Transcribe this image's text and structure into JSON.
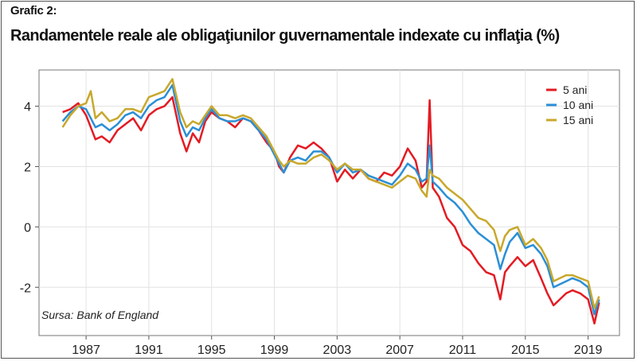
{
  "header": {
    "label": "Grafic 2:",
    "title": "Randamentele reale ale obligaţiunilor guvernamentale indexate cu inflaţia (%)"
  },
  "source": "Sursa: Bank of England",
  "colors": {
    "5 ani": "#e31b23",
    "10 ani": "#2b8fd6",
    "15 ani": "#c8a82c"
  },
  "chart_data": {
    "type": "line",
    "xlim": [
      1984,
      2021
    ],
    "ylim": [
      -3.6,
      5.2
    ],
    "x_ticks": [
      1987,
      1991,
      1995,
      1999,
      2003,
      2007,
      2011,
      2015,
      2019
    ],
    "y_ticks": [
      4,
      2,
      0,
      -2
    ],
    "y_tick_labels": [
      "4",
      "2",
      "0",
      "-2"
    ],
    "grid": true,
    "legend_position": "top-right",
    "series": [
      {
        "name": "5 ani",
        "color": "#e31b23",
        "points": [
          [
            1985.5,
            3.8
          ],
          [
            1986.0,
            3.9
          ],
          [
            1986.5,
            4.1
          ],
          [
            1987.0,
            3.7
          ],
          [
            1987.3,
            3.3
          ],
          [
            1987.6,
            2.9
          ],
          [
            1988.0,
            3.0
          ],
          [
            1988.5,
            2.8
          ],
          [
            1989.0,
            3.2
          ],
          [
            1989.5,
            3.4
          ],
          [
            1990.0,
            3.6
          ],
          [
            1990.5,
            3.2
          ],
          [
            1991.0,
            3.7
          ],
          [
            1991.5,
            3.9
          ],
          [
            1992.0,
            4.0
          ],
          [
            1992.5,
            4.3
          ],
          [
            1993.0,
            3.1
          ],
          [
            1993.4,
            2.5
          ],
          [
            1993.8,
            3.1
          ],
          [
            1994.2,
            2.8
          ],
          [
            1994.6,
            3.5
          ],
          [
            1995.0,
            3.8
          ],
          [
            1995.5,
            3.6
          ],
          [
            1996.0,
            3.5
          ],
          [
            1996.5,
            3.3
          ],
          [
            1997.0,
            3.6
          ],
          [
            1997.5,
            3.5
          ],
          [
            1998.0,
            3.2
          ],
          [
            1998.5,
            2.8
          ],
          [
            1999.0,
            2.5
          ],
          [
            1999.3,
            2.0
          ],
          [
            1999.6,
            1.8
          ],
          [
            2000.0,
            2.3
          ],
          [
            2000.5,
            2.7
          ],
          [
            2001.0,
            2.6
          ],
          [
            2001.5,
            2.8
          ],
          [
            2002.0,
            2.6
          ],
          [
            2002.5,
            2.3
          ],
          [
            2003.0,
            1.5
          ],
          [
            2003.5,
            1.9
          ],
          [
            2004.0,
            1.6
          ],
          [
            2004.5,
            1.9
          ],
          [
            2005.0,
            1.6
          ],
          [
            2005.5,
            1.5
          ],
          [
            2006.0,
            1.8
          ],
          [
            2006.5,
            1.7
          ],
          [
            2007.0,
            2.0
          ],
          [
            2007.5,
            2.6
          ],
          [
            2008.0,
            2.2
          ],
          [
            2008.4,
            1.3
          ],
          [
            2008.7,
            1.5
          ],
          [
            2008.9,
            4.2
          ],
          [
            2009.1,
            1.3
          ],
          [
            2009.5,
            1.0
          ],
          [
            2010.0,
            0.3
          ],
          [
            2010.5,
            0.0
          ],
          [
            2011.0,
            -0.6
          ],
          [
            2011.5,
            -0.8
          ],
          [
            2012.0,
            -1.2
          ],
          [
            2012.5,
            -1.5
          ],
          [
            2013.0,
            -1.6
          ],
          [
            2013.4,
            -2.4
          ],
          [
            2013.7,
            -1.5
          ],
          [
            2014.0,
            -1.3
          ],
          [
            2014.5,
            -1.0
          ],
          [
            2015.0,
            -1.3
          ],
          [
            2015.5,
            -1.1
          ],
          [
            2016.0,
            -1.7
          ],
          [
            2016.4,
            -2.2
          ],
          [
            2016.8,
            -2.6
          ],
          [
            2017.2,
            -2.4
          ],
          [
            2017.6,
            -2.2
          ],
          [
            2018.0,
            -2.1
          ],
          [
            2018.5,
            -2.2
          ],
          [
            2019.0,
            -2.4
          ],
          [
            2019.4,
            -3.2
          ],
          [
            2019.7,
            -2.5
          ]
        ]
      },
      {
        "name": "10 ani",
        "color": "#2b8fd6",
        "points": [
          [
            1985.5,
            3.5
          ],
          [
            1986.0,
            3.8
          ],
          [
            1986.5,
            4.0
          ],
          [
            1987.0,
            3.9
          ],
          [
            1987.3,
            3.6
          ],
          [
            1987.6,
            3.3
          ],
          [
            1988.0,
            3.4
          ],
          [
            1988.5,
            3.2
          ],
          [
            1989.0,
            3.4
          ],
          [
            1989.5,
            3.7
          ],
          [
            1990.0,
            3.8
          ],
          [
            1990.5,
            3.6
          ],
          [
            1991.0,
            4.0
          ],
          [
            1991.5,
            4.2
          ],
          [
            1992.0,
            4.3
          ],
          [
            1992.5,
            4.7
          ],
          [
            1993.0,
            3.5
          ],
          [
            1993.4,
            3.0
          ],
          [
            1993.8,
            3.3
          ],
          [
            1994.2,
            3.2
          ],
          [
            1994.6,
            3.6
          ],
          [
            1995.0,
            3.9
          ],
          [
            1995.5,
            3.6
          ],
          [
            1996.0,
            3.5
          ],
          [
            1996.5,
            3.5
          ],
          [
            1997.0,
            3.6
          ],
          [
            1997.5,
            3.5
          ],
          [
            1998.0,
            3.2
          ],
          [
            1998.5,
            2.9
          ],
          [
            1999.0,
            2.4
          ],
          [
            1999.3,
            2.1
          ],
          [
            1999.6,
            1.8
          ],
          [
            2000.0,
            2.2
          ],
          [
            2000.5,
            2.3
          ],
          [
            2001.0,
            2.2
          ],
          [
            2001.5,
            2.5
          ],
          [
            2002.0,
            2.5
          ],
          [
            2002.5,
            2.3
          ],
          [
            2003.0,
            1.8
          ],
          [
            2003.5,
            2.1
          ],
          [
            2004.0,
            1.8
          ],
          [
            2004.5,
            1.9
          ],
          [
            2005.0,
            1.7
          ],
          [
            2005.5,
            1.6
          ],
          [
            2006.0,
            1.5
          ],
          [
            2006.5,
            1.4
          ],
          [
            2007.0,
            1.7
          ],
          [
            2007.5,
            2.1
          ],
          [
            2008.0,
            1.9
          ],
          [
            2008.4,
            1.5
          ],
          [
            2008.7,
            1.6
          ],
          [
            2008.9,
            2.7
          ],
          [
            2009.1,
            1.5
          ],
          [
            2009.5,
            1.3
          ],
          [
            2010.0,
            1.0
          ],
          [
            2010.5,
            0.8
          ],
          [
            2011.0,
            0.5
          ],
          [
            2011.5,
            0.1
          ],
          [
            2012.0,
            -0.2
          ],
          [
            2012.5,
            -0.4
          ],
          [
            2013.0,
            -0.6
          ],
          [
            2013.4,
            -1.4
          ],
          [
            2013.7,
            -0.9
          ],
          [
            2014.0,
            -0.5
          ],
          [
            2014.5,
            -0.2
          ],
          [
            2015.0,
            -0.7
          ],
          [
            2015.5,
            -0.6
          ],
          [
            2016.0,
            -0.9
          ],
          [
            2016.4,
            -1.3
          ],
          [
            2016.8,
            -2.0
          ],
          [
            2017.2,
            -1.9
          ],
          [
            2017.6,
            -1.8
          ],
          [
            2018.0,
            -1.7
          ],
          [
            2018.5,
            -1.8
          ],
          [
            2019.0,
            -2.0
          ],
          [
            2019.4,
            -2.9
          ],
          [
            2019.7,
            -2.4
          ]
        ]
      },
      {
        "name": "15 ani",
        "color": "#c8a82c",
        "points": [
          [
            1985.5,
            3.3
          ],
          [
            1986.0,
            3.7
          ],
          [
            1986.5,
            4.0
          ],
          [
            1987.0,
            4.1
          ],
          [
            1987.3,
            4.5
          ],
          [
            1987.6,
            3.6
          ],
          [
            1988.0,
            3.8
          ],
          [
            1988.5,
            3.5
          ],
          [
            1989.0,
            3.6
          ],
          [
            1989.5,
            3.9
          ],
          [
            1990.0,
            3.9
          ],
          [
            1990.5,
            3.8
          ],
          [
            1991.0,
            4.3
          ],
          [
            1991.5,
            4.4
          ],
          [
            1992.0,
            4.5
          ],
          [
            1992.5,
            4.9
          ],
          [
            1993.0,
            3.8
          ],
          [
            1993.4,
            3.3
          ],
          [
            1993.8,
            3.5
          ],
          [
            1994.2,
            3.4
          ],
          [
            1994.6,
            3.7
          ],
          [
            1995.0,
            4.0
          ],
          [
            1995.5,
            3.7
          ],
          [
            1996.0,
            3.7
          ],
          [
            1996.5,
            3.6
          ],
          [
            1997.0,
            3.7
          ],
          [
            1997.5,
            3.6
          ],
          [
            1998.0,
            3.3
          ],
          [
            1998.5,
            3.0
          ],
          [
            1999.0,
            2.5
          ],
          [
            1999.3,
            2.2
          ],
          [
            1999.6,
            2.0
          ],
          [
            2000.0,
            2.2
          ],
          [
            2000.5,
            2.1
          ],
          [
            2001.0,
            2.1
          ],
          [
            2001.5,
            2.3
          ],
          [
            2002.0,
            2.4
          ],
          [
            2002.5,
            2.2
          ],
          [
            2003.0,
            1.9
          ],
          [
            2003.5,
            2.1
          ],
          [
            2004.0,
            1.9
          ],
          [
            2004.5,
            1.9
          ],
          [
            2005.0,
            1.6
          ],
          [
            2005.5,
            1.5
          ],
          [
            2006.0,
            1.4
          ],
          [
            2006.5,
            1.3
          ],
          [
            2007.0,
            1.5
          ],
          [
            2007.5,
            1.7
          ],
          [
            2008.0,
            1.6
          ],
          [
            2008.4,
            1.2
          ],
          [
            2008.7,
            1.0
          ],
          [
            2008.9,
            1.9
          ],
          [
            2009.1,
            1.7
          ],
          [
            2009.5,
            1.6
          ],
          [
            2010.0,
            1.3
          ],
          [
            2010.5,
            1.1
          ],
          [
            2011.0,
            0.9
          ],
          [
            2011.5,
            0.6
          ],
          [
            2012.0,
            0.3
          ],
          [
            2012.5,
            0.2
          ],
          [
            2013.0,
            -0.1
          ],
          [
            2013.4,
            -0.8
          ],
          [
            2013.7,
            -0.3
          ],
          [
            2014.0,
            -0.1
          ],
          [
            2014.5,
            0.0
          ],
          [
            2015.0,
            -0.6
          ],
          [
            2015.5,
            -0.4
          ],
          [
            2016.0,
            -0.7
          ],
          [
            2016.4,
            -1.1
          ],
          [
            2016.8,
            -1.8
          ],
          [
            2017.2,
            -1.7
          ],
          [
            2017.6,
            -1.6
          ],
          [
            2018.0,
            -1.6
          ],
          [
            2018.5,
            -1.7
          ],
          [
            2019.0,
            -1.8
          ],
          [
            2019.4,
            -2.7
          ],
          [
            2019.7,
            -2.3
          ]
        ]
      }
    ]
  }
}
